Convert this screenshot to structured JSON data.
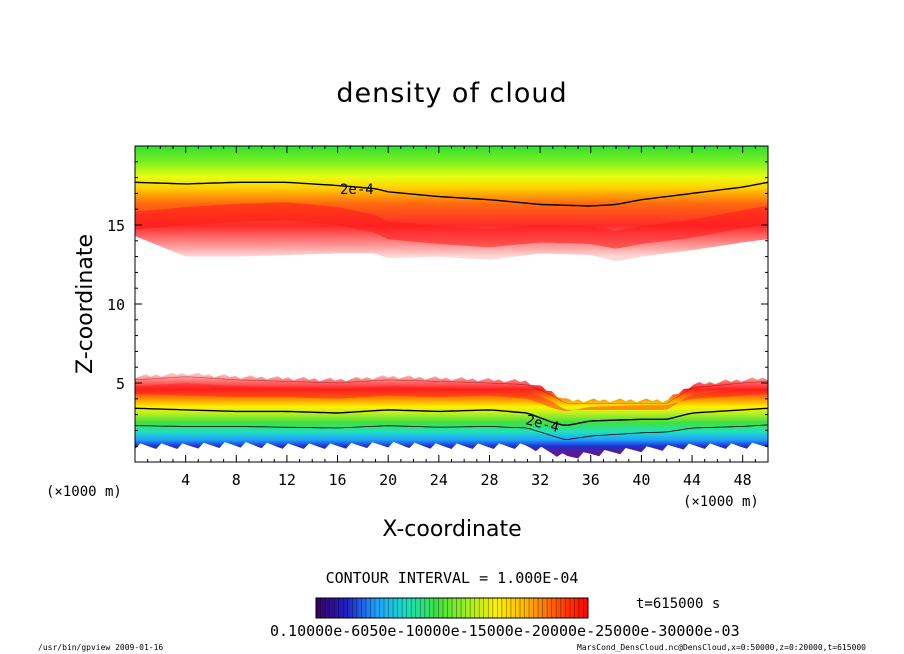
{
  "chart_data": {
    "type": "heatmap",
    "title": "density of cloud",
    "xlabel": "X-coordinate",
    "ylabel": "Z-coordinate",
    "x_unit": "(×1000 m)",
    "y_unit": "(×1000 m)",
    "xlim": [
      0,
      50
    ],
    "ylim": [
      0,
      20
    ],
    "x_ticks": [
      4,
      8,
      12,
      16,
      20,
      24,
      28,
      32,
      36,
      40,
      44,
      48
    ],
    "y_ticks": [
      5,
      10,
      15
    ],
    "contour_interval_text": "CONTOUR INTERVAL = 1.000E-04",
    "contour_label": "2e-4",
    "colorbar_label_text": "0.10000e-6050e-10000e-15000e-20000e-25000e-30000e-03",
    "time_text": "t=615000 s",
    "colormap_stops": [
      "#3b0060",
      "#2020c0",
      "#1fa0ff",
      "#18e0c0",
      "#40e040",
      "#a0f020",
      "#fff000",
      "#ffb000",
      "#ff5000",
      "#ff0000",
      "#ff8080",
      "#ffd0d0"
    ],
    "grid": false,
    "upper_band": {
      "x": [
        0,
        4,
        8,
        12,
        16,
        19,
        20,
        24,
        28,
        32,
        36,
        38,
        40,
        44,
        48,
        50
      ],
      "bottom": [
        14.3,
        13.0,
        13.0,
        13.1,
        13.2,
        13.2,
        12.9,
        13.0,
        12.8,
        13.2,
        13.1,
        12.7,
        13.0,
        13.4,
        13.9,
        14.1
      ],
      "core": [
        15.2,
        15.5,
        15.7,
        15.8,
        15.5,
        15.0,
        14.6,
        14.3,
        14.1,
        14.4,
        14.3,
        14.0,
        14.3,
        14.7,
        15.3,
        15.6
      ],
      "contour_2e4": [
        17.7,
        17.6,
        17.7,
        17.7,
        17.5,
        17.3,
        17.1,
        16.8,
        16.6,
        16.3,
        16.2,
        16.3,
        16.6,
        17.0,
        17.4,
        17.7
      ]
    },
    "lower_band": {
      "x": [
        0,
        4,
        8,
        12,
        16,
        20,
        24,
        28,
        31,
        33,
        34,
        36,
        40,
        42,
        44,
        48,
        50
      ],
      "top": [
        5.4,
        5.6,
        5.4,
        5.3,
        5.2,
        5.4,
        5.3,
        5.2,
        5.1,
        4.4,
        3.9,
        3.9,
        3.9,
        3.9,
        4.9,
        5.2,
        5.3
      ],
      "contour_2e4": [
        3.4,
        3.3,
        3.2,
        3.2,
        3.1,
        3.3,
        3.2,
        3.3,
        3.1,
        2.5,
        2.3,
        2.6,
        2.7,
        2.7,
        3.1,
        3.3,
        3.4
      ],
      "bottom": [
        1.0,
        1.0,
        1.1,
        1.0,
        1.0,
        1.1,
        1.0,
        1.0,
        1.0,
        0.6,
        0.3,
        0.5,
        0.8,
        0.9,
        1.0,
        1.0,
        1.1
      ]
    }
  },
  "footer": {
    "left": "/usr/bin/gpview   2009-01-16",
    "right": "MarsCond_DensCloud.nc@DensCloud,x=0:50000,z=0:20000,t=615000"
  }
}
